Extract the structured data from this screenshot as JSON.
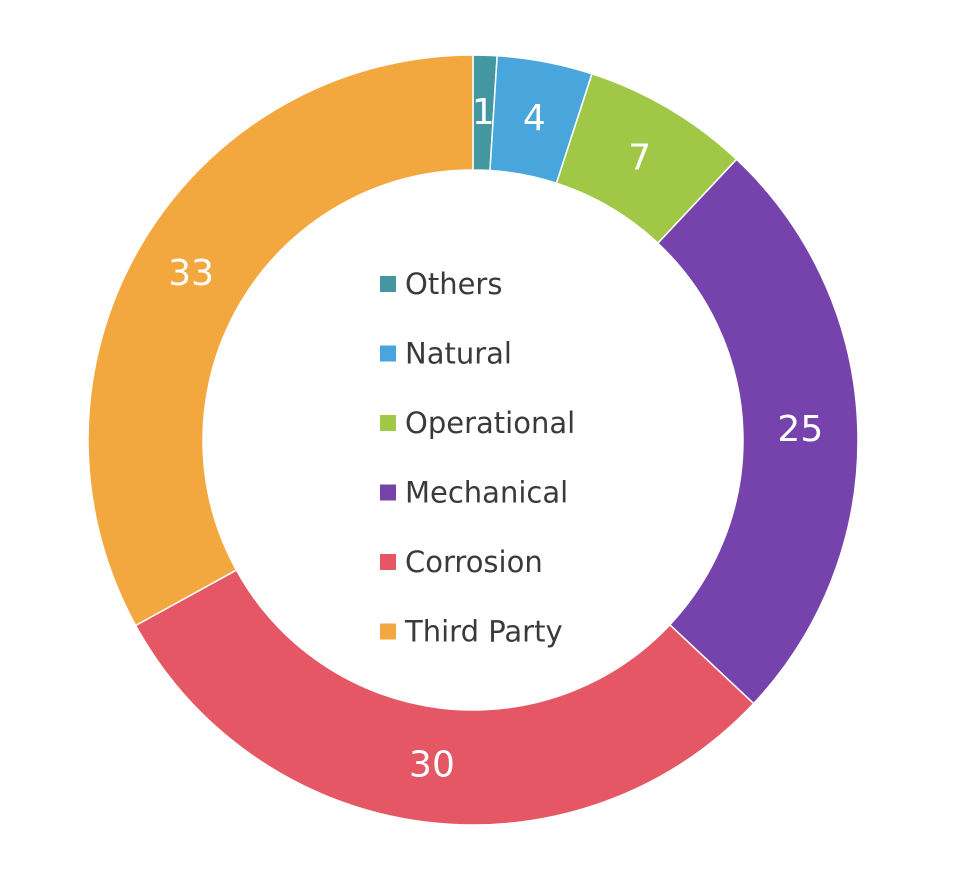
{
  "chart_data": {
    "type": "pie",
    "variant": "donut",
    "categories": [
      "Others",
      "Natural",
      "Operational",
      "Mechanical",
      "Corrosion",
      "Third Party"
    ],
    "values": [
      1,
      4,
      7,
      25,
      30,
      33
    ],
    "colors": [
      "#4297a0",
      "#49a6dc",
      "#a0c846",
      "#7643ad",
      "#e55764",
      "#f2a73f"
    ],
    "data_labels": [
      "1",
      "4",
      "7",
      "25",
      "30",
      "33"
    ],
    "legend": {
      "placement": "center",
      "entries": [
        "Others",
        "Natural",
        "Operational",
        "Mechanical",
        "Corrosion",
        "Third Party"
      ]
    }
  }
}
